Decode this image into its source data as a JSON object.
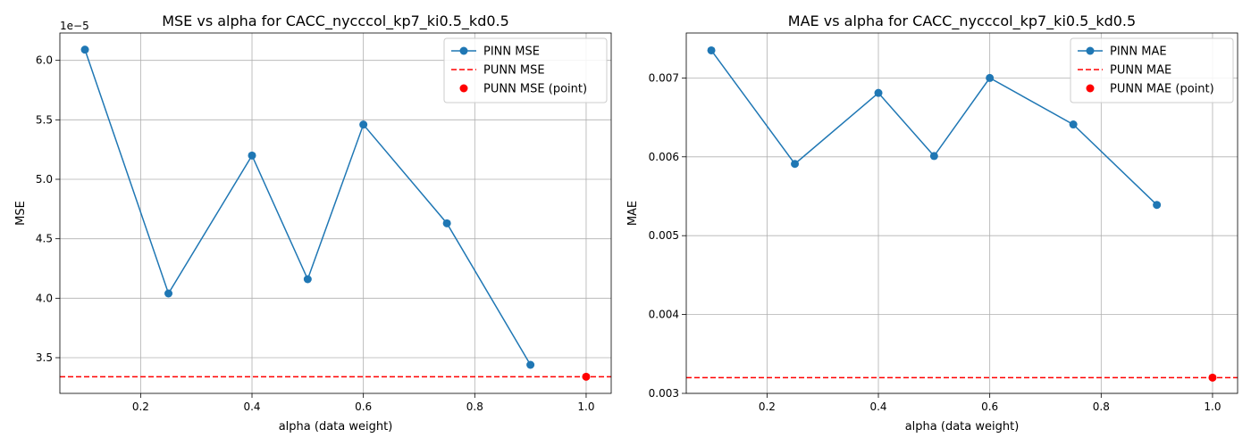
{
  "chart_data": [
    {
      "type": "line",
      "title": "MSE vs alpha for CACC_nycccol_kp7_ki0.5_kd0.5",
      "xlabel": "alpha (data weight)",
      "ylabel": "MSE",
      "offset_text": "1e−5",
      "xlim": [
        0.055,
        1.045
      ],
      "ylim": [
        3.2,
        6.23
      ],
      "xticks": [
        0.2,
        0.4,
        0.6,
        0.8,
        1.0
      ],
      "xtick_labels": [
        "0.2",
        "0.4",
        "0.6",
        "0.8",
        "1.0"
      ],
      "yticks": [
        3.5,
        4.0,
        4.5,
        5.0,
        5.5,
        6.0
      ],
      "ytick_labels": [
        "3.5",
        "4.0",
        "4.5",
        "5.0",
        "5.5",
        "6.0"
      ],
      "grid": true,
      "legend_position": "top-right",
      "series": [
        {
          "name": "PINN MSE",
          "kind": "line-marker",
          "color": "#1f77b4",
          "x": [
            0.1,
            0.25,
            0.4,
            0.5,
            0.6,
            0.75,
            0.9
          ],
          "y": [
            6.09,
            4.04,
            5.2,
            4.16,
            5.46,
            4.63,
            3.44
          ]
        },
        {
          "name": "PUNN MSE",
          "kind": "hline",
          "color": "#ff0000",
          "y": 3.34
        },
        {
          "name": "PUNN MSE (point)",
          "kind": "scatter",
          "color": "#ff0000",
          "x": [
            1.0
          ],
          "y": [
            3.34
          ]
        }
      ]
    },
    {
      "type": "line",
      "title": "MAE vs alpha for CACC_nycccol_kp7_ki0.5_kd0.5",
      "xlabel": "alpha (data weight)",
      "ylabel": "MAE",
      "offset_text": "",
      "xlim": [
        0.055,
        1.045
      ],
      "ylim": [
        0.003,
        0.00757
      ],
      "xticks": [
        0.2,
        0.4,
        0.6,
        0.8,
        1.0
      ],
      "xtick_labels": [
        "0.2",
        "0.4",
        "0.6",
        "0.8",
        "1.0"
      ],
      "yticks": [
        0.003,
        0.004,
        0.005,
        0.006,
        0.007
      ],
      "ytick_labels": [
        "0.003",
        "0.004",
        "0.005",
        "0.006",
        "0.007"
      ],
      "grid": true,
      "legend_position": "top-right",
      "series": [
        {
          "name": "PINN MAE",
          "kind": "line-marker",
          "color": "#1f77b4",
          "x": [
            0.1,
            0.25,
            0.4,
            0.5,
            0.6,
            0.75,
            0.9
          ],
          "y": [
            0.00735,
            0.00591,
            0.00681,
            0.00601,
            0.007,
            0.00641,
            0.00539
          ]
        },
        {
          "name": "PUNN MAE",
          "kind": "hline",
          "color": "#ff0000",
          "y": 0.0032
        },
        {
          "name": "PUNN MAE (point)",
          "kind": "scatter",
          "color": "#ff0000",
          "x": [
            1.0
          ],
          "y": [
            0.0032
          ]
        }
      ]
    }
  ]
}
